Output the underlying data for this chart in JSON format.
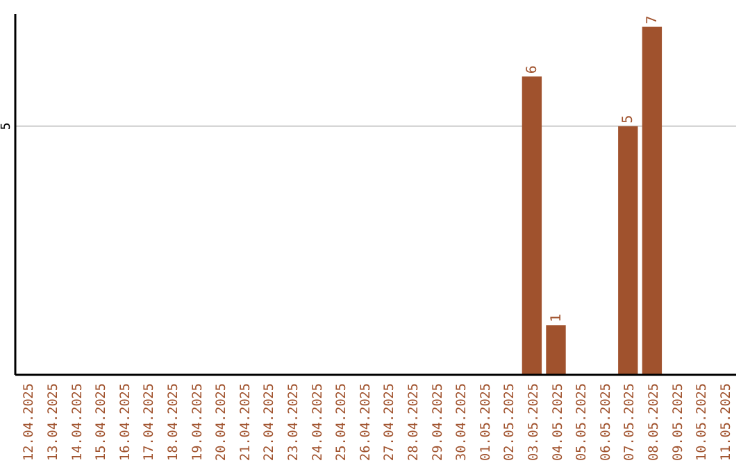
{
  "chart_data": {
    "type": "bar",
    "categories": [
      "12.04.2025",
      "13.04.2025",
      "14.04.2025",
      "15.04.2025",
      "16.04.2025",
      "17.04.2025",
      "18.04.2025",
      "19.04.2025",
      "20.04.2025",
      "21.04.2025",
      "22.04.2025",
      "23.04.2025",
      "24.04.2025",
      "25.04.2025",
      "26.04.2025",
      "27.04.2025",
      "28.04.2025",
      "29.04.2025",
      "30.04.2025",
      "01.05.2025",
      "02.05.2025",
      "03.05.2025",
      "04.05.2025",
      "05.05.2025",
      "06.05.2025",
      "07.05.2025",
      "08.05.2025",
      "09.05.2025",
      "10.05.2025",
      "11.05.2025"
    ],
    "values": [
      null,
      null,
      null,
      null,
      null,
      null,
      null,
      null,
      null,
      null,
      null,
      null,
      null,
      null,
      null,
      null,
      null,
      null,
      null,
      null,
      null,
      6,
      1,
      null,
      null,
      5,
      7,
      null,
      null,
      null
    ],
    "data_labels": true,
    "color": "#a0522d",
    "ylim": [
      0,
      7.26
    ],
    "ref_lines": [
      {
        "axis": "y",
        "value": 5,
        "label": "5",
        "color": "#cccccc"
      }
    ]
  }
}
